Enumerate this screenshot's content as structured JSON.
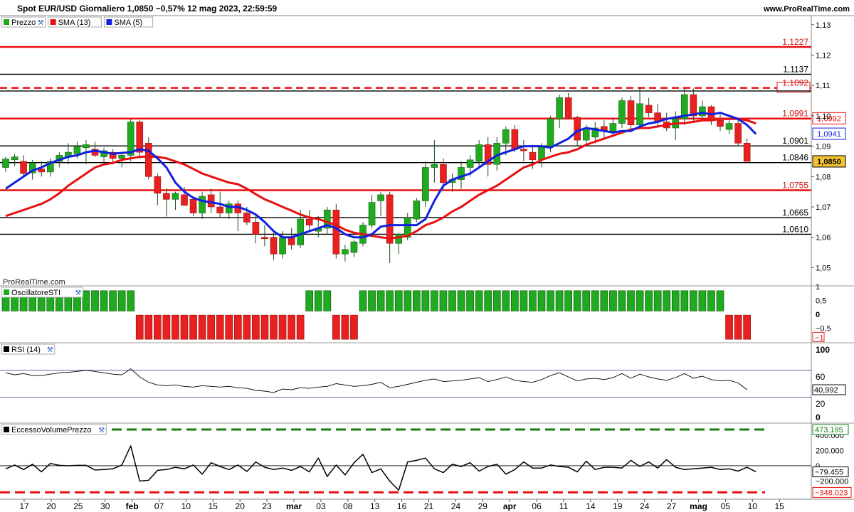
{
  "header": {
    "title": "Spot EUR/USD Giornaliero 1,0850 −0,57% 12 mag 2023, 22:59:59",
    "site": "www.ProRealTime.com",
    "watermark": "ProRealTime.com"
  },
  "colors": {
    "bull": "#1faa1f",
    "bear": "#e82020",
    "sma13": "#e81010",
    "sma5": "#1020e0",
    "line": "#000000"
  },
  "chart_data": [
    {
      "type": "candlestick",
      "panel": "price",
      "legend": [
        {
          "label": "Prezzo",
          "color": "#1faa1f"
        },
        {
          "label": "SMA (13)",
          "color": "#e81010"
        },
        {
          "label": "SMA (5)",
          "color": "#1020e0"
        }
      ],
      "ylim": [
        1.044,
        1.133
      ],
      "yticks": [
        "1,13",
        "1,12",
        "1,11",
        "1,10",
        "1,09",
        "1,08",
        "1,07",
        "1,06",
        "1,05"
      ],
      "ytick_values": [
        1.13,
        1.12,
        1.11,
        1.1,
        1.09,
        1.08,
        1.07,
        1.06,
        1.05
      ],
      "x_labels": [
        "17",
        "20",
        "25",
        "30",
        "feb",
        "07",
        "10",
        "15",
        "20",
        "23",
        "mar",
        "03",
        "08",
        "13",
        "16",
        "21",
        "24",
        "29",
        "apr",
        "06",
        "11",
        "14",
        "19",
        "24",
        "27",
        "mag",
        "05",
        "10",
        "15"
      ],
      "candles": [
        [
          1.083,
          1.0865,
          1.0815,
          1.0858
        ],
        [
          1.0855,
          1.0875,
          1.0835,
          1.0865
        ],
        [
          1.085,
          1.087,
          1.08,
          1.081
        ],
        [
          1.0812,
          1.0855,
          1.079,
          1.0845
        ],
        [
          1.0825,
          1.085,
          1.08,
          1.0815
        ],
        [
          1.0815,
          1.086,
          1.08,
          1.085
        ],
        [
          1.085,
          1.088,
          1.083,
          1.087
        ],
        [
          1.0865,
          1.091,
          1.084,
          1.088
        ],
        [
          1.0875,
          1.0915,
          1.086,
          1.09
        ],
        [
          1.0895,
          1.092,
          1.084,
          1.0905
        ],
        [
          1.089,
          1.0915,
          1.0865,
          1.087
        ],
        [
          1.0865,
          1.0895,
          1.084,
          1.0885
        ],
        [
          1.088,
          1.089,
          1.084,
          1.086
        ],
        [
          1.086,
          1.088,
          1.083,
          1.087
        ],
        [
          1.087,
          1.099,
          1.085,
          1.098
        ],
        [
          1.098,
          1.0985,
          1.086,
          1.088
        ],
        [
          1.091,
          1.093,
          1.079,
          1.08
        ],
        [
          1.08,
          1.081,
          1.0705,
          1.0745
        ],
        [
          1.0745,
          1.076,
          1.0668,
          1.0725
        ],
        [
          1.0725,
          1.075,
          1.069,
          1.0745
        ],
        [
          1.074,
          1.0765,
          1.0705,
          1.0705
        ],
        [
          1.0725,
          1.0735,
          1.067,
          1.068
        ],
        [
          1.068,
          1.075,
          1.066,
          1.0735
        ],
        [
          1.074,
          1.076,
          1.068,
          1.07
        ],
        [
          1.07,
          1.075,
          1.0665,
          1.068
        ],
        [
          1.068,
          1.072,
          1.066,
          1.071
        ],
        [
          1.071,
          1.072,
          1.062,
          1.068
        ],
        [
          1.068,
          1.07,
          1.064,
          1.065
        ],
        [
          1.065,
          1.067,
          1.058,
          1.061
        ],
        [
          1.06,
          1.064,
          1.057,
          1.0595
        ],
        [
          1.06,
          1.0615,
          1.0525,
          1.0545
        ],
        [
          1.0545,
          1.062,
          1.053,
          1.06
        ],
        [
          1.06,
          1.063,
          1.056,
          1.0575
        ],
        [
          1.0575,
          1.069,
          1.0565,
          1.066
        ],
        [
          1.066,
          1.069,
          1.062,
          1.064
        ],
        [
          1.062,
          1.067,
          1.06,
          1.063
        ],
        [
          1.063,
          1.07,
          1.061,
          1.069
        ],
        [
          1.069,
          1.071,
          1.053,
          1.0545
        ],
        [
          1.0545,
          1.0575,
          1.052,
          1.056
        ],
        [
          1.055,
          1.059,
          1.0535,
          1.0585
        ],
        [
          1.058,
          1.065,
          1.057,
          1.064
        ],
        [
          1.064,
          1.074,
          1.063,
          1.0715
        ],
        [
          1.072,
          1.075,
          1.067,
          1.074
        ],
        [
          1.074,
          1.075,
          1.0515,
          1.058
        ],
        [
          1.058,
          1.0615,
          1.0545,
          1.061
        ],
        [
          1.06,
          1.068,
          1.059,
          1.0665
        ],
        [
          1.066,
          1.073,
          1.065,
          1.072
        ],
        [
          1.072,
          1.085,
          1.07,
          1.083
        ],
        [
          1.083,
          1.092,
          1.078,
          1.084
        ],
        [
          1.084,
          1.086,
          1.076,
          1.078
        ],
        [
          1.078,
          1.081,
          1.075,
          1.079
        ],
        [
          1.079,
          1.085,
          1.076,
          1.083
        ],
        [
          1.083,
          1.087,
          1.08,
          1.0855
        ],
        [
          1.085,
          1.092,
          1.083,
          1.0905
        ],
        [
          1.0905,
          1.093,
          1.08,
          1.084
        ],
        [
          1.084,
          1.093,
          1.082,
          1.091
        ],
        [
          1.091,
          1.0965,
          1.087,
          1.0955
        ],
        [
          1.0955,
          1.097,
          1.088,
          1.089
        ],
        [
          1.089,
          1.092,
          1.085,
          1.0885
        ],
        [
          1.088,
          1.0905,
          1.0825,
          1.0855
        ],
        [
          1.0855,
          1.091,
          1.083,
          1.09
        ],
        [
          1.09,
          1.1,
          1.088,
          1.099
        ],
        [
          1.099,
          1.107,
          1.096,
          1.106
        ],
        [
          1.106,
          1.1075,
          1.099,
          1.0995
        ],
        [
          1.0995,
          1.1,
          1.09,
          1.092
        ],
        [
          1.092,
          1.097,
          1.09,
          1.096
        ],
        [
          1.093,
          1.098,
          1.091,
          1.096
        ],
        [
          1.0965,
          1.0985,
          1.092,
          1.095
        ],
        [
          1.095,
          1.099,
          1.093,
          1.0975
        ],
        [
          1.0975,
          1.106,
          1.096,
          1.105
        ],
        [
          1.105,
          1.1065,
          1.095,
          1.097
        ],
        [
          1.097,
          1.1095,
          1.096,
          1.104
        ],
        [
          1.1035,
          1.106,
          1.0995,
          1.101
        ],
        [
          1.101,
          1.104,
          1.096,
          1.098
        ],
        [
          1.098,
          1.101,
          1.095,
          1.096
        ],
        [
          1.096,
          1.1015,
          1.092,
          1.099
        ],
        [
          1.099,
          1.109,
          1.097,
          1.107
        ],
        [
          1.107,
          1.109,
          1.098,
          1.1
        ],
        [
          1.1,
          1.105,
          1.099,
          1.103
        ],
        [
          1.103,
          1.1035,
          1.097,
          1.0985
        ],
        [
          1.0985,
          1.1005,
          1.095,
          1.0965
        ],
        [
          1.0955,
          1.0985,
          1.094,
          1.0975
        ],
        [
          1.0975,
          1.099,
          1.09,
          1.091
        ],
        [
          1.091,
          1.0925,
          1.085,
          1.085
        ]
      ],
      "sma13": [
        1.067,
        1.068,
        1.069,
        1.07,
        1.071,
        1.0725,
        1.0745,
        1.077,
        1.079,
        1.081,
        1.083,
        1.084,
        1.0845,
        1.0855,
        1.086,
        1.0865,
        1.0866,
        1.0865,
        1.086,
        1.085,
        1.084,
        1.0825,
        1.081,
        1.08,
        1.079,
        1.078,
        1.0775,
        1.076,
        1.0742,
        1.0725,
        1.0713,
        1.07,
        1.0688,
        1.0675,
        1.0665,
        1.066,
        1.065,
        1.064,
        1.0625,
        1.0615,
        1.061,
        1.0605,
        1.06,
        1.0596,
        1.06,
        1.0605,
        1.062,
        1.064,
        1.065,
        1.0665,
        1.0685,
        1.07,
        1.072,
        1.074,
        1.0755,
        1.077,
        1.079,
        1.081,
        1.083,
        1.084,
        1.0855,
        1.0865,
        1.0875,
        1.088,
        1.089,
        1.0905,
        1.0915,
        1.0925,
        1.0935,
        1.0945,
        1.0955,
        1.096,
        1.096,
        1.0965,
        1.097,
        1.0975,
        1.0976,
        1.098,
        1.0985,
        1.0985,
        1.099,
        1.099,
        1.099,
        1.0985,
        1.0975
      ],
      "sma5": [
        1.076,
        1.078,
        1.08,
        1.082,
        1.083,
        1.0845,
        1.0855,
        1.0865,
        1.087,
        1.088,
        1.0885,
        1.088,
        1.0875,
        1.0878,
        1.088,
        1.089,
        1.0885,
        1.086,
        1.083,
        1.078,
        1.075,
        1.073,
        1.072,
        1.0715,
        1.071,
        1.07,
        1.07,
        1.069,
        1.0675,
        1.065,
        1.062,
        1.06,
        1.06,
        1.061,
        1.062,
        1.063,
        1.064,
        1.063,
        1.061,
        1.06,
        1.06,
        1.061,
        1.0635,
        1.064,
        1.064,
        1.064,
        1.064,
        1.066,
        1.072,
        1.077,
        1.079,
        1.08,
        1.081,
        1.083,
        1.085,
        1.087,
        1.088,
        1.089,
        1.09,
        1.09,
        1.09,
        1.0895,
        1.091,
        1.0925,
        1.095,
        1.096,
        1.0955,
        1.095,
        1.0945,
        1.095,
        1.095,
        1.0965,
        1.0975,
        1.098,
        1.099,
        1.0995,
        1.1,
        1.1005,
        1.101,
        1.1005,
        1.101,
        1.1,
        1.099,
        1.097,
        1.094
      ],
      "hlines": [
        {
          "value": 1.1227,
          "label": "1,1227",
          "color": "#e81010",
          "dashed": false
        },
        {
          "value": 1.1137,
          "label": "1,1137",
          "color": "#000000",
          "dashed": false
        },
        {
          "value": 1.1092,
          "label": "1,1092",
          "color": "#e81010",
          "dashed": true
        },
        {
          "value": 1.1082,
          "label": "",
          "color": "#000000",
          "dashed": false
        },
        {
          "value": 1.0991,
          "label": "1,0991",
          "color": "#e81010",
          "dashed": false
        },
        {
          "value": 1.0901,
          "label": "1,0901",
          "color": "#000000",
          "dashed": false
        },
        {
          "value": 1.0846,
          "label": "1,0846",
          "color": "#000000",
          "dashed": false
        },
        {
          "value": 1.0755,
          "label": "1,0755",
          "color": "#e81010",
          "dashed": false
        },
        {
          "value": 1.0665,
          "label": "1,0665",
          "color": "#000000",
          "dashed": false
        },
        {
          "value": 1.061,
          "label": "1,0610",
          "color": "#000000",
          "dashed": false
        }
      ],
      "right_badges": [
        {
          "value": 1.0992,
          "label": "1,0992",
          "color": "#e81010",
          "fill": "#ffffff"
        },
        {
          "value": 1.0941,
          "label": "1,0941",
          "color": "#1020e0",
          "fill": "#ffffff"
        },
        {
          "value": 1.085,
          "label": "1,0850",
          "color": "#000000",
          "fill": "#f4c430"
        }
      ]
    },
    {
      "type": "bar",
      "panel": "sti",
      "legend": [
        {
          "label": "OscillatoreSTI",
          "color": "#1faa1f"
        }
      ],
      "ylim": [
        -1,
        1
      ],
      "yticks": [
        "1",
        "0,5",
        "0",
        "−0,5"
      ],
      "ytick_values": [
        1,
        0.5,
        0,
        -0.5
      ],
      "last_label": "−1",
      "signs": "+++++++++++++++-------------------+++---+++++++++++++++++++++++++++++++++++++++++----"
    },
    {
      "type": "line",
      "panel": "rsi",
      "legend": [
        {
          "label": "RSI (14)",
          "color": "#000000"
        }
      ],
      "ylim": [
        0,
        100
      ],
      "yticks": [
        "100",
        "60",
        "20",
        "0"
      ],
      "ytick_values": [
        100,
        60,
        20,
        0
      ],
      "bands": [
        70,
        30
      ],
      "last_label": "40,992",
      "values": [
        66,
        63,
        65,
        62,
        62,
        64,
        66,
        67,
        68,
        70,
        68,
        66,
        64,
        63,
        72,
        60,
        52,
        48,
        47,
        48,
        46,
        45,
        47,
        46,
        45,
        46,
        44,
        43,
        40,
        39,
        37,
        42,
        41,
        44,
        43,
        45,
        46,
        50,
        48,
        46,
        47,
        49,
        52,
        44,
        46,
        49,
        52,
        55,
        57,
        53,
        54,
        55,
        57,
        59,
        53,
        56,
        60,
        55,
        53,
        52,
        56,
        62,
        66,
        60,
        54,
        57,
        58,
        56,
        59,
        65,
        58,
        64,
        60,
        57,
        55,
        59,
        65,
        58,
        61,
        56,
        54,
        55,
        51,
        41
      ]
    },
    {
      "type": "line",
      "panel": "volume",
      "legend": [
        {
          "label": "EccessoVolumePrezzo",
          "color": "#000000"
        }
      ],
      "ylim": [
        -400000,
        520000
      ],
      "yticks": [
        "400.000",
        "200.000",
        "0",
        "−200.000"
      ],
      "ytick_values": [
        400000,
        200000,
        0,
        -200000
      ],
      "upper": {
        "value": 473195,
        "label": "473.195"
      },
      "lower": {
        "value": -348023,
        "label": "−348.023"
      },
      "last_label": "−79.455",
      "values": [
        -40,
        10,
        -50,
        20,
        -80,
        30,
        5,
        0,
        5,
        5,
        -55,
        -50,
        -40,
        10,
        260,
        -200,
        -190,
        -60,
        -50,
        -20,
        -40,
        10,
        -110,
        40,
        -10,
        -50,
        10,
        -75,
        50,
        -20,
        -50,
        -30,
        -60,
        -10,
        -80,
        100,
        -140,
        10,
        -120,
        40,
        150,
        -90,
        -40,
        -200,
        -320,
        50,
        70,
        100,
        -40,
        -90,
        20,
        -10,
        40,
        -70,
        -10,
        20,
        -110,
        -50,
        50,
        -30,
        -30,
        10,
        -10,
        -20,
        -80,
        60,
        -50,
        -20,
        -20,
        -30,
        70,
        -10,
        50,
        -30,
        80,
        -20,
        -50,
        -40,
        -30,
        -20,
        -50,
        -40,
        -70,
        -20,
        -80
      ]
    }
  ]
}
